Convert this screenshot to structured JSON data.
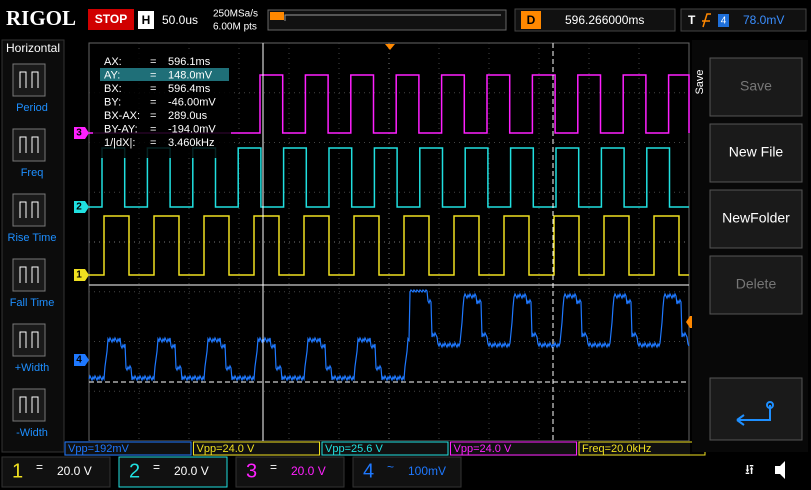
{
  "top_bar": {
    "brand": "RIGOL",
    "status": "STOP",
    "timebase_label": "H",
    "timebase": "50.0us",
    "sample_rate": "250MSa/s",
    "memory_depth": "6.00M pts",
    "delay_label": "D",
    "delay": "596.266000ms",
    "trigger_label": "T",
    "trigger_source": "4",
    "trigger_level": "78.0mV"
  },
  "left_menu": {
    "title": "Horizontal",
    "items": [
      "Period",
      "Freq",
      "Rise Time",
      "Fall Time",
      "+Width",
      "-Width"
    ]
  },
  "cursor_readout": {
    "rows": [
      [
        "AX:",
        "=",
        "596.1ms"
      ],
      [
        "AY:",
        "=",
        "148.0mV"
      ],
      [
        "BX:",
        "=",
        "596.4ms"
      ],
      [
        "BY:",
        "=",
        "-46.00mV"
      ],
      [
        "BX-AX:",
        "=",
        "289.0us"
      ],
      [
        "BY-AY:",
        "=",
        "-194.0mV"
      ],
      [
        "1/|dX|:",
        "=",
        "3.460kHz"
      ]
    ]
  },
  "channel_markers": [
    "3",
    "2",
    "1",
    "4"
  ],
  "trigger_marker": "T",
  "measurements": [
    "Vpp=192mV",
    "Vpp=24.0 V",
    "Vpp=25.6 V",
    "Vpp=24.0 V",
    "Freq=20.0kHz"
  ],
  "channels": [
    {
      "number": "1",
      "coupling": "=",
      "scale": "20.0 V"
    },
    {
      "number": "2",
      "coupling": "=",
      "scale": "20.0 V"
    },
    {
      "number": "3",
      "coupling": "=",
      "scale": "20.0 V"
    },
    {
      "number": "4",
      "coupling": "~",
      "scale": "100mV"
    }
  ],
  "right_menu": {
    "title": "Save",
    "items": [
      "Save",
      "New File",
      "NewFolder",
      "Delete"
    ]
  }
}
